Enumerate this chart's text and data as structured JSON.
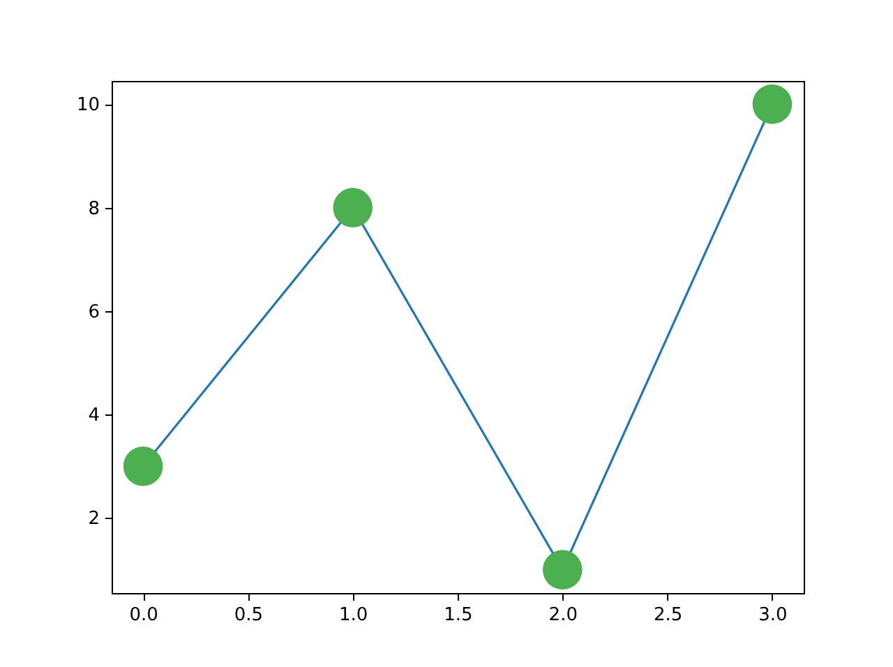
{
  "chart_data": {
    "type": "line",
    "x": [
      0,
      1,
      2,
      3
    ],
    "series": [
      {
        "color": "#1f77b4",
        "values": [
          3,
          8,
          1,
          10
        ],
        "marker": "none"
      },
      {
        "type": "scatter",
        "color": "#4caf50",
        "values": [
          3,
          8,
          1,
          10
        ],
        "marker": "circle"
      }
    ],
    "xlim": [
      -0.15,
      3.15
    ],
    "xticks": [
      {
        "value": 0,
        "label": "0.0"
      },
      {
        "value": 0.5,
        "label": "0.5"
      },
      {
        "value": 1,
        "label": "1.0"
      },
      {
        "value": 1.5,
        "label": "1.5"
      },
      {
        "value": 2,
        "label": "2.0"
      },
      {
        "value": 2.5,
        "label": "2.5"
      },
      {
        "value": 3,
        "label": "3.0"
      }
    ],
    "ylim": [
      0.55,
      10.45
    ],
    "yticks": [
      2,
      4,
      6,
      8,
      10
    ],
    "grid": false
  }
}
